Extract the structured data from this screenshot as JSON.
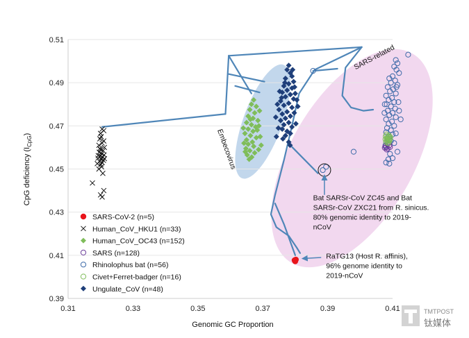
{
  "chart_data": {
    "type": "scatter",
    "title": "",
    "xlabel": "Genomic GC Proportion",
    "ylabel": "CpG deficiency (I",
    "ylabel_sub": "CpG",
    "ylabel_close": ")",
    "xlim": [
      0.31,
      0.41
    ],
    "ylim": [
      0.39,
      0.51
    ],
    "x_ticks": [
      {
        "value": 0.31,
        "label": "0.31"
      },
      {
        "value": 0.33,
        "label": "0.33"
      },
      {
        "value": 0.35,
        "label": "0.35"
      },
      {
        "value": 0.37,
        "label": "0.37"
      },
      {
        "value": 0.39,
        "label": "0.39"
      },
      {
        "value": 0.41,
        "label": "0.41"
      }
    ],
    "y_ticks": [
      {
        "value": 0.39,
        "label": "0.39"
      },
      {
        "value": 0.41,
        "label": "0.41"
      },
      {
        "value": 0.43,
        "label": "0.43"
      },
      {
        "value": 0.45,
        "label": "0.45"
      },
      {
        "value": 0.47,
        "label": "0.47"
      },
      {
        "value": 0.49,
        "label": "0.49"
      },
      {
        "value": 0.51,
        "label": "0.51"
      }
    ],
    "series": [
      {
        "name": "SARS-CoV-2 (n=5)",
        "marker": "filled-circle",
        "color": "#e8141b",
        "points": [
          [
            0.3799,
            0.4075
          ],
          [
            0.3801,
            0.4078
          ],
          [
            0.38,
            0.4072
          ],
          [
            0.3802,
            0.408
          ],
          [
            0.3798,
            0.4077
          ]
        ]
      },
      {
        "name": "Human_CoV_HKU1 (n=33)",
        "marker": "x",
        "color": "#111111",
        "points": [
          [
            0.3205,
            0.4685
          ],
          [
            0.321,
            0.4678
          ],
          [
            0.32,
            0.4665
          ],
          [
            0.3202,
            0.465
          ],
          [
            0.3198,
            0.464
          ],
          [
            0.321,
            0.463
          ],
          [
            0.3205,
            0.462
          ],
          [
            0.3195,
            0.461
          ],
          [
            0.3212,
            0.46
          ],
          [
            0.32,
            0.459
          ],
          [
            0.3208,
            0.4585
          ],
          [
            0.3196,
            0.4578
          ],
          [
            0.3204,
            0.457
          ],
          [
            0.3211,
            0.4565
          ],
          [
            0.3199,
            0.456
          ],
          [
            0.3206,
            0.4555
          ],
          [
            0.3192,
            0.455
          ],
          [
            0.3202,
            0.4545
          ],
          [
            0.3209,
            0.454
          ],
          [
            0.3197,
            0.4535
          ],
          [
            0.3205,
            0.453
          ],
          [
            0.319,
            0.4525
          ],
          [
            0.3201,
            0.452
          ],
          [
            0.3203,
            0.451
          ],
          [
            0.3195,
            0.45
          ],
          [
            0.3207,
            0.448
          ],
          [
            0.3175,
            0.4435
          ],
          [
            0.321,
            0.44
          ],
          [
            0.32,
            0.438
          ],
          [
            0.3205,
            0.437
          ],
          [
            0.3198,
            0.4595
          ],
          [
            0.3212,
            0.4548
          ],
          [
            0.3193,
            0.4562
          ]
        ]
      },
      {
        "name": "Human_CoV_OC43 (n=152)",
        "marker": "diamond",
        "color": "#7fbd5a",
        "points": [
          [
            0.3672,
            0.482
          ],
          [
            0.3665,
            0.48
          ],
          [
            0.368,
            0.479
          ],
          [
            0.366,
            0.4775
          ],
          [
            0.3675,
            0.476
          ],
          [
            0.3655,
            0.4745
          ],
          [
            0.367,
            0.4735
          ],
          [
            0.3685,
            0.4725
          ],
          [
            0.365,
            0.4715
          ],
          [
            0.3665,
            0.4705
          ],
          [
            0.3678,
            0.4695
          ],
          [
            0.3655,
            0.4685
          ],
          [
            0.367,
            0.4675
          ],
          [
            0.3645,
            0.4665
          ],
          [
            0.3662,
            0.4655
          ],
          [
            0.368,
            0.4645
          ],
          [
            0.365,
            0.4635
          ],
          [
            0.3668,
            0.4625
          ],
          [
            0.3655,
            0.4615
          ],
          [
            0.3672,
            0.4605
          ],
          [
            0.3648,
            0.4595
          ],
          [
            0.366,
            0.4585
          ],
          [
            0.3675,
            0.4575
          ],
          [
            0.3652,
            0.4565
          ],
          [
            0.3666,
            0.4555
          ],
          [
            0.3658,
            0.4545
          ],
          [
            0.369,
            0.477
          ],
          [
            0.3688,
            0.47
          ],
          [
            0.3692,
            0.465
          ],
          [
            0.364,
            0.469
          ],
          [
            0.3642,
            0.462
          ],
          [
            0.3695,
            0.461
          ],
          [
            0.3646,
            0.458
          ],
          [
            0.3687,
            0.459
          ],
          [
            0.3662,
            0.473
          ],
          [
            0.3683,
            0.468
          ]
        ]
      },
      {
        "name": "SARS (n=128)",
        "marker": "open-circle",
        "color": "#6a3d9a",
        "points": [
          [
            0.408,
            0.46
          ],
          [
            0.4085,
            0.4595
          ],
          [
            0.4078,
            0.4605
          ],
          [
            0.409,
            0.461
          ],
          [
            0.4082,
            0.459
          ],
          [
            0.4088,
            0.462
          ],
          [
            0.4076,
            0.4598
          ],
          [
            0.4092,
            0.4602
          ],
          [
            0.4084,
            0.4615
          ],
          [
            0.408,
            0.4625
          ]
        ]
      },
      {
        "name": "Rhinolophus bat (n=56)",
        "marker": "open-circle",
        "color": "#3c6aa8",
        "points": [
          [
            0.4148,
            0.503
          ],
          [
            0.411,
            0.5005
          ],
          [
            0.4115,
            0.499
          ],
          [
            0.4105,
            0.4975
          ],
          [
            0.4112,
            0.496
          ],
          [
            0.412,
            0.4945
          ],
          [
            0.41,
            0.493
          ],
          [
            0.409,
            0.492
          ],
          [
            0.4108,
            0.491
          ],
          [
            0.4095,
            0.49
          ],
          [
            0.4115,
            0.489
          ],
          [
            0.4085,
            0.488
          ],
          [
            0.4102,
            0.487
          ],
          [
            0.4092,
            0.486
          ],
          [
            0.411,
            0.485
          ],
          [
            0.408,
            0.484
          ],
          [
            0.4098,
            0.483
          ],
          [
            0.4088,
            0.482
          ],
          [
            0.4105,
            0.481
          ],
          [
            0.4082,
            0.48
          ],
          [
            0.4095,
            0.479
          ],
          [
            0.4108,
            0.478
          ],
          [
            0.4085,
            0.477
          ],
          [
            0.41,
            0.476
          ],
          [
            0.409,
            0.475
          ],
          [
            0.411,
            0.474
          ],
          [
            0.408,
            0.473
          ],
          [
            0.4098,
            0.472
          ],
          [
            0.4088,
            0.471
          ],
          [
            0.4105,
            0.47
          ],
          [
            0.4083,
            0.469
          ],
          [
            0.4095,
            0.468
          ],
          [
            0.408,
            0.467
          ],
          [
            0.41,
            0.466
          ],
          [
            0.409,
            0.465
          ],
          [
            0.4085,
            0.464
          ],
          [
            0.4095,
            0.463
          ],
          [
            0.4105,
            0.462
          ],
          [
            0.4078,
            0.461
          ],
          [
            0.4092,
            0.457
          ],
          [
            0.41,
            0.455
          ],
          [
            0.408,
            0.453
          ],
          [
            0.409,
            0.4525
          ],
          [
            0.412,
            0.477
          ],
          [
            0.4118,
            0.481
          ],
          [
            0.4125,
            0.473
          ],
          [
            0.3855,
            0.4955
          ],
          [
            0.3895,
            0.451
          ],
          [
            0.3885,
            0.4495
          ],
          [
            0.398,
            0.458
          ],
          [
            0.4115,
            0.458
          ],
          [
            0.4075,
            0.476
          ],
          [
            0.4112,
            0.488
          ],
          [
            0.4076,
            0.48
          ],
          [
            0.411,
            0.4665
          ],
          [
            0.4087,
            0.4545
          ]
        ]
      },
      {
        "name": "Civet+Ferret-badger (n=16)",
        "marker": "open-circle",
        "color": "#7fbd5a",
        "points": [
          [
            0.4082,
            0.464
          ],
          [
            0.4088,
            0.4635
          ],
          [
            0.4085,
            0.4645
          ],
          [
            0.409,
            0.463
          ],
          [
            0.408,
            0.4625
          ],
          [
            0.4086,
            0.465
          ],
          [
            0.4092,
            0.4642
          ],
          [
            0.4078,
            0.4638
          ],
          [
            0.4084,
            0.4628
          ],
          [
            0.4089,
            0.4655
          ],
          [
            0.4081,
            0.466
          ],
          [
            0.4087,
            0.462
          ],
          [
            0.4093,
            0.4648
          ],
          [
            0.4079,
            0.4652
          ],
          [
            0.4083,
            0.4633
          ],
          [
            0.4091,
            0.4637
          ]
        ]
      },
      {
        "name": "Ungulate_CoV (n=48)",
        "marker": "diamond",
        "color": "#1f3f7a",
        "points": [
          [
            0.378,
            0.498
          ],
          [
            0.3775,
            0.496
          ],
          [
            0.3785,
            0.4945
          ],
          [
            0.379,
            0.493
          ],
          [
            0.377,
            0.492
          ],
          [
            0.3795,
            0.4905
          ],
          [
            0.378,
            0.4895
          ],
          [
            0.3765,
            0.4885
          ],
          [
            0.379,
            0.4875
          ],
          [
            0.3775,
            0.4865
          ],
          [
            0.376,
            0.4855
          ],
          [
            0.3785,
            0.4845
          ],
          [
            0.377,
            0.4835
          ],
          [
            0.3795,
            0.4825
          ],
          [
            0.3755,
            0.4815
          ],
          [
            0.378,
            0.4805
          ],
          [
            0.3765,
            0.4795
          ],
          [
            0.379,
            0.4785
          ],
          [
            0.375,
            0.4775
          ],
          [
            0.3775,
            0.4765
          ],
          [
            0.376,
            0.4755
          ],
          [
            0.3785,
            0.4745
          ],
          [
            0.377,
            0.4735
          ],
          [
            0.3755,
            0.4725
          ],
          [
            0.378,
            0.4715
          ],
          [
            0.3765,
            0.4705
          ],
          [
            0.379,
            0.4695
          ],
          [
            0.376,
            0.4685
          ],
          [
            0.3775,
            0.4675
          ],
          [
            0.3785,
            0.4665
          ],
          [
            0.377,
            0.4655
          ],
          [
            0.38,
            0.485
          ],
          [
            0.3745,
            0.48
          ],
          [
            0.3797,
            0.476
          ],
          [
            0.374,
            0.474
          ],
          [
            0.3802,
            0.471
          ],
          [
            0.3748,
            0.469
          ],
          [
            0.3798,
            0.488
          ],
          [
            0.3752,
            0.486
          ],
          [
            0.3805,
            0.482
          ],
          [
            0.3762,
            0.464
          ],
          [
            0.378,
            0.4625
          ],
          [
            0.3742,
            0.465
          ],
          [
            0.3808,
            0.479
          ],
          [
            0.3768,
            0.49
          ],
          [
            0.3792,
            0.496
          ],
          [
            0.3758,
            0.483
          ],
          [
            0.3784,
            0.461
          ]
        ]
      }
    ],
    "regions": [
      {
        "name": "embecovirus-region",
        "color": "#c2d7ec",
        "cx": 0.37,
        "cy": 0.472,
        "rx": 0.006,
        "ry": 0.028,
        "rotate_deg": 20
      },
      {
        "name": "sars-related-region",
        "color": "#f2d8ef",
        "cx": 0.3975,
        "cy": 0.455,
        "rx": 0.019,
        "ry": 0.056,
        "rotate_deg": 30
      }
    ],
    "tree": {
      "color": "#4f86b8",
      "segments": [
        [
          [
            0.3205,
            0.4695
          ],
          [
            0.3585,
            0.4755
          ]
        ],
        [
          [
            0.3585,
            0.4755
          ],
          [
            0.3595,
            0.5025
          ]
        ],
        [
          [
            0.3595,
            0.5025
          ],
          [
            0.4005,
            0.5065
          ]
        ],
        [
          [
            0.3595,
            0.5025
          ],
          [
            0.3665,
            0.485
          ]
        ],
        [
          [
            0.3595,
            0.494
          ],
          [
            0.3705,
            0.4905
          ]
        ],
        [
          [
            0.3615,
            0.4885
          ],
          [
            0.369,
            0.4855
          ]
        ]
      ],
      "paths": [
        [
          [
            0.4005,
            0.5065
          ],
          [
            0.386,
            0.496
          ],
          [
            0.3812,
            0.485
          ],
          [
            0.379,
            0.47
          ],
          [
            0.3765,
            0.454
          ],
          [
            0.3738,
            0.438
          ],
          [
            0.3725,
            0.429
          ],
          [
            0.3742,
            0.423
          ],
          [
            0.378,
            0.419
          ],
          [
            0.3805,
            0.4135
          ],
          [
            0.3815,
            0.411
          ]
        ],
        [
          [
            0.4005,
            0.5065
          ],
          [
            0.3955,
            0.497
          ],
          [
            0.3945,
            0.484
          ],
          [
            0.3972,
            0.4785
          ],
          [
            0.401,
            0.477
          ],
          [
            0.404,
            0.4775
          ]
        ],
        [
          [
            0.3855,
            0.4955
          ],
          [
            0.393,
            0.4965
          ]
        ],
        [
          [
            0.3785,
            0.461
          ],
          [
            0.387,
            0.448
          ]
        ],
        [
          [
            0.3738,
            0.434
          ],
          [
            0.3765,
            0.4245
          ],
          [
            0.38,
            0.41
          ]
        ]
      ]
    },
    "highlight_circle": {
      "cx": 0.389,
      "cy": 0.4495,
      "r": 0.0015
    },
    "annotations": [
      {
        "name": "embecovirus-label",
        "lines": [
          "Embecovirus"
        ],
        "x": 0.356,
        "y": 0.468,
        "rotate_deg": 70,
        "color": "#111111",
        "italic": false
      },
      {
        "name": "sars-related-label",
        "lines": [
          "SARS-related"
        ],
        "x": 0.3986,
        "y": 0.496,
        "rotate_deg": -28,
        "color": "#d61f7e",
        "italic": false
      },
      {
        "name": "bat-sarsr-label",
        "lines": [
          "Bat SARSr-CoV ZC45 and Bat",
          "SARSr-CoV ZXC21 from R. sinicus.",
          "80% genomic identity to 2019-",
          "nCoV"
        ],
        "x": 0.3855,
        "y": 0.4355,
        "color": "#111111",
        "italic": false
      },
      {
        "name": "ratg13-label",
        "lines": [
          "RaTG13 (Host R. affinis),",
          "96% genome identity to",
          "2019-nCoV"
        ],
        "x": 0.3895,
        "y": 0.4085,
        "color": "#111111",
        "italic": false
      }
    ],
    "arrows": [
      {
        "name": "bat-sarsr-arrow",
        "from": [
          0.389,
          0.438
        ],
        "to": [
          0.389,
          0.447
        ]
      },
      {
        "name": "ratg13-arrow",
        "from": [
          0.388,
          0.409
        ],
        "to": [
          0.3823,
          0.4085
        ]
      }
    ],
    "legend_position": "bottom-left"
  },
  "watermark": {
    "brand_en": "TMTPOST",
    "brand_cn": "钛媒体"
  }
}
